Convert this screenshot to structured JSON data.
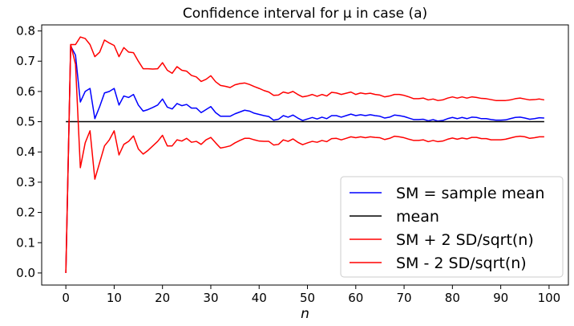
{
  "chart_data": {
    "type": "line",
    "title": "Confidence interval for μ in case (a)",
    "xlabel": "n",
    "ylabel": "",
    "xlim": [
      -5,
      104
    ],
    "ylim": [
      -0.04,
      0.82
    ],
    "xticks": [
      0,
      10,
      20,
      30,
      40,
      50,
      60,
      70,
      80,
      90,
      100
    ],
    "yticks": [
      0.0,
      0.1,
      0.2,
      0.3,
      0.4,
      0.5,
      0.6,
      0.7,
      0.8
    ],
    "xtick_labels": [
      "0",
      "10",
      "20",
      "30",
      "40",
      "50",
      "60",
      "70",
      "80",
      "90",
      "100"
    ],
    "ytick_labels": [
      "0.0",
      "0.1",
      "0.2",
      "0.3",
      "0.4",
      "0.5",
      "0.6",
      "0.7",
      "0.8"
    ],
    "grid": false,
    "legend_position": "lower-right",
    "series": [
      {
        "name": "SM = sample mean",
        "color": "#0000ff",
        "x": [
          0,
          1,
          2,
          3,
          4,
          5,
          6,
          7,
          8,
          9,
          10,
          11,
          12,
          13,
          14,
          15,
          16,
          17,
          18,
          19,
          20,
          21,
          22,
          23,
          24,
          25,
          26,
          27,
          28,
          29,
          30,
          31,
          32,
          33,
          34,
          35,
          36,
          37,
          38,
          39,
          40,
          41,
          42,
          43,
          44,
          45,
          46,
          47,
          48,
          49,
          50,
          51,
          52,
          53,
          54,
          55,
          56,
          57,
          58,
          59,
          60,
          61,
          62,
          63,
          64,
          65,
          66,
          67,
          68,
          69,
          70,
          71,
          72,
          73,
          74,
          75,
          76,
          77,
          78,
          79,
          80,
          81,
          82,
          83,
          84,
          85,
          86,
          87,
          88,
          89,
          90,
          91,
          92,
          93,
          94,
          95,
          96,
          97,
          98,
          99
        ],
        "y": [
          0.0,
          0.75,
          0.72,
          0.565,
          0.6,
          0.61,
          0.51,
          0.55,
          0.595,
          0.6,
          0.61,
          0.555,
          0.585,
          0.58,
          0.59,
          0.555,
          0.535,
          0.54,
          0.547,
          0.555,
          0.575,
          0.548,
          0.542,
          0.56,
          0.553,
          0.557,
          0.545,
          0.545,
          0.53,
          0.54,
          0.55,
          0.53,
          0.518,
          0.518,
          0.518,
          0.526,
          0.532,
          0.538,
          0.535,
          0.528,
          0.524,
          0.52,
          0.517,
          0.505,
          0.508,
          0.52,
          0.515,
          0.522,
          0.512,
          0.504,
          0.509,
          0.514,
          0.509,
          0.515,
          0.51,
          0.52,
          0.52,
          0.515,
          0.52,
          0.525,
          0.52,
          0.523,
          0.52,
          0.523,
          0.52,
          0.518,
          0.512,
          0.515,
          0.522,
          0.52,
          0.517,
          0.512,
          0.507,
          0.507,
          0.508,
          0.503,
          0.507,
          0.502,
          0.504,
          0.51,
          0.514,
          0.51,
          0.514,
          0.51,
          0.515,
          0.514,
          0.51,
          0.51,
          0.507,
          0.505,
          0.505,
          0.506,
          0.51,
          0.514,
          0.515,
          0.512,
          0.508,
          0.51,
          0.513,
          0.512
        ]
      },
      {
        "name": "mean",
        "color": "#000000",
        "x": [
          0,
          99
        ],
        "y": [
          0.5,
          0.5
        ]
      },
      {
        "name": "SM + 2 SD/sqrt(n)",
        "color": "#ff0000",
        "x": [
          0,
          1,
          2,
          3,
          4,
          5,
          6,
          7,
          8,
          9,
          10,
          11,
          12,
          13,
          14,
          15,
          16,
          17,
          18,
          19,
          20,
          21,
          22,
          23,
          24,
          25,
          26,
          27,
          28,
          29,
          30,
          31,
          32,
          33,
          34,
          35,
          36,
          37,
          38,
          39,
          40,
          41,
          42,
          43,
          44,
          45,
          46,
          47,
          48,
          49,
          50,
          51,
          52,
          53,
          54,
          55,
          56,
          57,
          58,
          59,
          60,
          61,
          62,
          63,
          64,
          65,
          66,
          67,
          68,
          69,
          70,
          71,
          72,
          73,
          74,
          75,
          76,
          77,
          78,
          79,
          80,
          81,
          82,
          83,
          84,
          85,
          86,
          87,
          88,
          89,
          90,
          91,
          92,
          93,
          94,
          95,
          96,
          97,
          98,
          99
        ],
        "y": [
          0.0,
          0.755,
          0.755,
          0.78,
          0.775,
          0.755,
          0.715,
          0.73,
          0.77,
          0.76,
          0.752,
          0.715,
          0.745,
          0.73,
          0.728,
          0.7,
          0.675,
          0.675,
          0.674,
          0.675,
          0.695,
          0.67,
          0.66,
          0.682,
          0.67,
          0.667,
          0.653,
          0.648,
          0.633,
          0.64,
          0.652,
          0.632,
          0.62,
          0.617,
          0.613,
          0.622,
          0.626,
          0.628,
          0.623,
          0.616,
          0.61,
          0.603,
          0.598,
          0.587,
          0.588,
          0.598,
          0.594,
          0.6,
          0.59,
          0.582,
          0.585,
          0.59,
          0.584,
          0.59,
          0.585,
          0.597,
          0.595,
          0.59,
          0.594,
          0.598,
          0.59,
          0.595,
          0.592,
          0.594,
          0.59,
          0.588,
          0.582,
          0.585,
          0.59,
          0.59,
          0.587,
          0.582,
          0.576,
          0.576,
          0.578,
          0.572,
          0.575,
          0.57,
          0.572,
          0.578,
          0.582,
          0.578,
          0.582,
          0.578,
          0.582,
          0.58,
          0.577,
          0.576,
          0.573,
          0.57,
          0.57,
          0.57,
          0.572,
          0.576,
          0.578,
          0.575,
          0.572,
          0.573,
          0.575,
          0.572
        ]
      },
      {
        "name": "SM - 2 SD/sqrt(n)",
        "color": "#ff0000",
        "x": [
          0,
          1,
          2,
          3,
          4,
          5,
          6,
          7,
          8,
          9,
          10,
          11,
          12,
          13,
          14,
          15,
          16,
          17,
          18,
          19,
          20,
          21,
          22,
          23,
          24,
          25,
          26,
          27,
          28,
          29,
          30,
          31,
          32,
          33,
          34,
          35,
          36,
          37,
          38,
          39,
          40,
          41,
          42,
          43,
          44,
          45,
          46,
          47,
          48,
          49,
          50,
          51,
          52,
          53,
          54,
          55,
          56,
          57,
          58,
          59,
          60,
          61,
          62,
          63,
          64,
          65,
          66,
          67,
          68,
          69,
          70,
          71,
          72,
          73,
          74,
          75,
          76,
          77,
          78,
          79,
          80,
          81,
          82,
          83,
          84,
          85,
          86,
          87,
          88,
          89,
          90,
          91,
          92,
          93,
          94,
          95,
          96,
          97,
          98,
          99
        ],
        "y": [
          0.0,
          0.755,
          0.69,
          0.348,
          0.43,
          0.47,
          0.31,
          0.365,
          0.42,
          0.44,
          0.47,
          0.39,
          0.425,
          0.435,
          0.453,
          0.41,
          0.393,
          0.405,
          0.42,
          0.435,
          0.455,
          0.42,
          0.42,
          0.44,
          0.436,
          0.445,
          0.432,
          0.435,
          0.425,
          0.44,
          0.448,
          0.43,
          0.413,
          0.416,
          0.42,
          0.43,
          0.438,
          0.445,
          0.445,
          0.44,
          0.436,
          0.435,
          0.435,
          0.423,
          0.425,
          0.44,
          0.435,
          0.443,
          0.432,
          0.424,
          0.43,
          0.435,
          0.432,
          0.438,
          0.434,
          0.444,
          0.445,
          0.44,
          0.445,
          0.45,
          0.447,
          0.45,
          0.447,
          0.45,
          0.448,
          0.447,
          0.441,
          0.445,
          0.452,
          0.45,
          0.447,
          0.442,
          0.438,
          0.438,
          0.44,
          0.434,
          0.438,
          0.434,
          0.436,
          0.442,
          0.446,
          0.442,
          0.446,
          0.443,
          0.448,
          0.448,
          0.444,
          0.444,
          0.44,
          0.44,
          0.44,
          0.442,
          0.446,
          0.45,
          0.452,
          0.45,
          0.445,
          0.447,
          0.45,
          0.45
        ]
      }
    ]
  }
}
